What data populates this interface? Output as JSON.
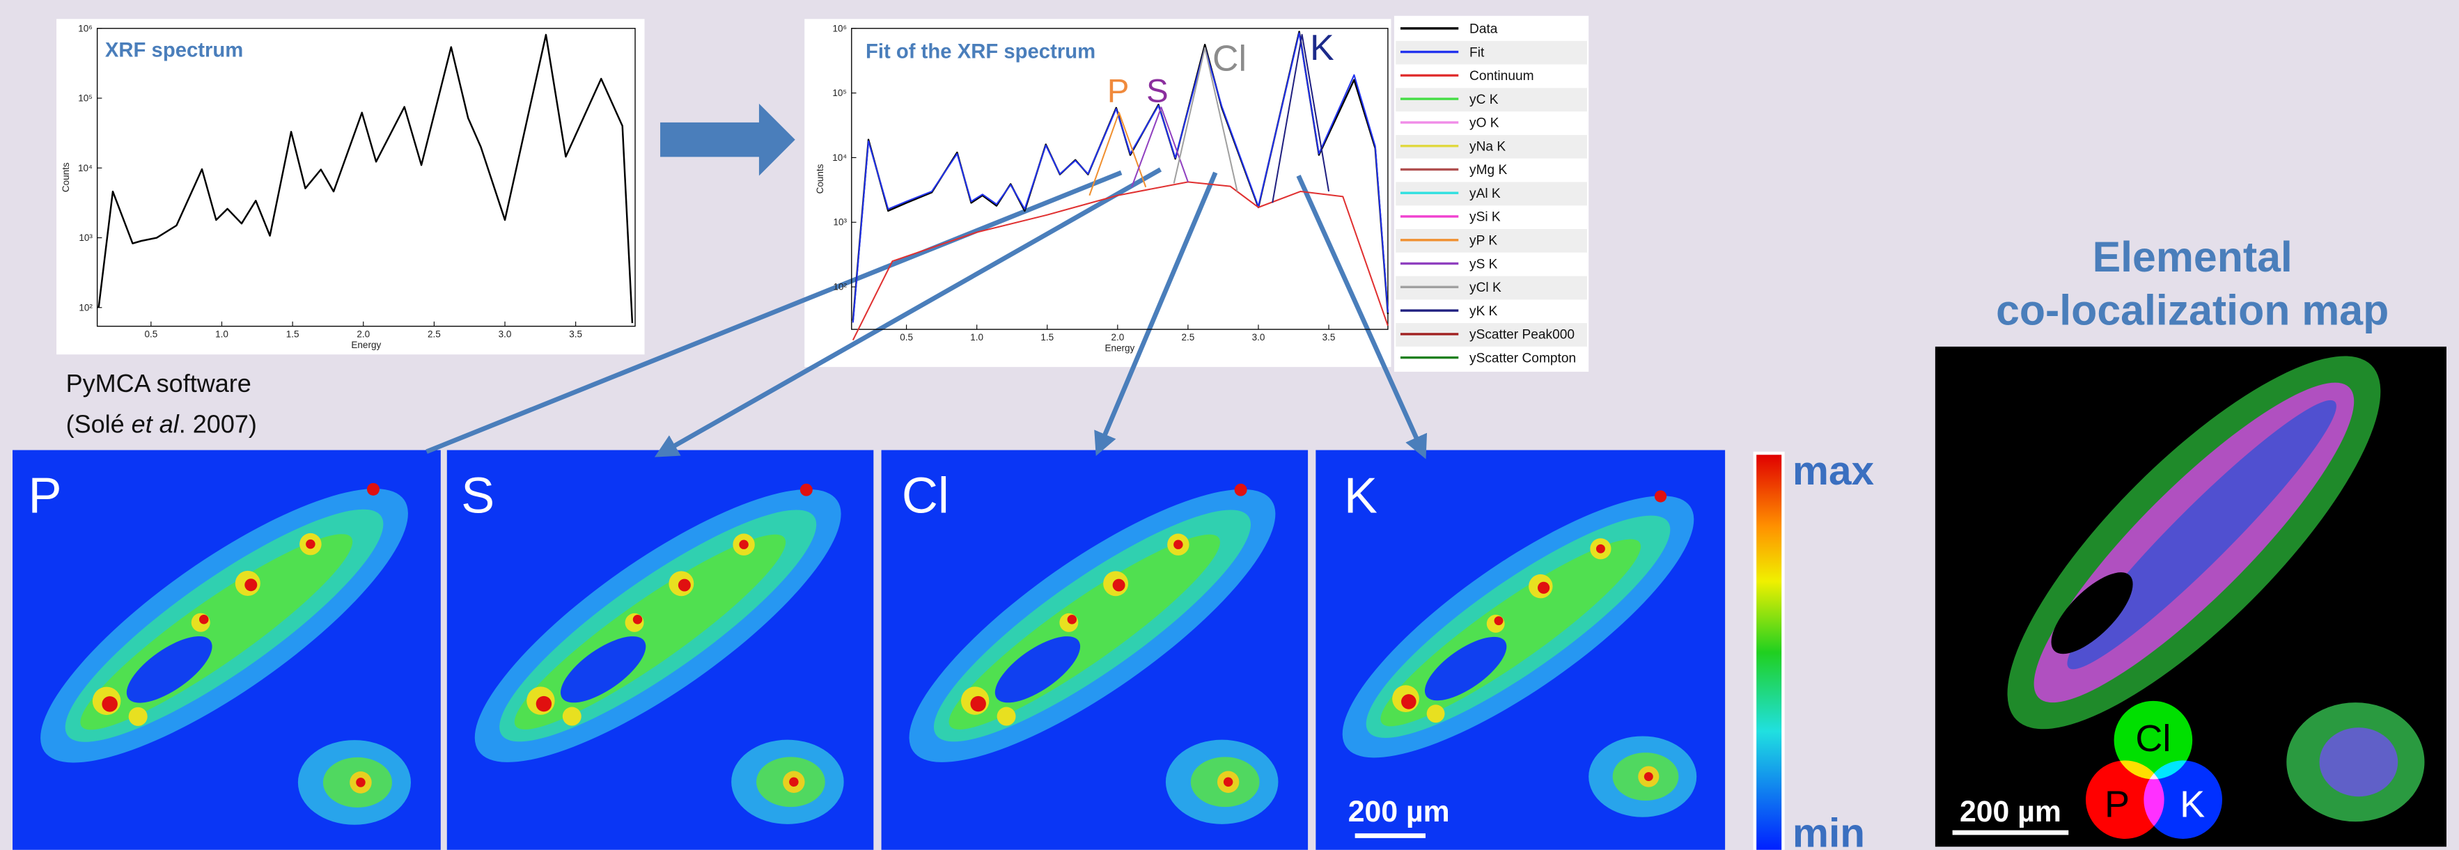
{
  "spectrum": {
    "title": "XRF spectrum",
    "xlabel": "Energy",
    "ylabel": "Counts",
    "log_y": true,
    "xlim": [
      0.12,
      3.92
    ],
    "ylim": [
      54,
      1000000
    ],
    "xticks": [
      0.5,
      {
        "value": 1,
        "label": "1.0"
      },
      1.5,
      {
        "value": 2,
        "label": "2.0"
      },
      2.5,
      {
        "value": 3,
        "label": "3.0"
      },
      3.5
    ],
    "yticks": [
      {
        "value": 100,
        "label": "10²"
      },
      {
        "value": 1000,
        "label": "10³"
      },
      {
        "value": 10000,
        "label": "10⁴"
      },
      {
        "value": 100000,
        "label": "10⁵"
      },
      {
        "value": 1000000,
        "label": "10⁶"
      }
    ],
    "series": [
      {
        "color": "#000000",
        "x": [
          0.13,
          0.23,
          0.37,
          0.43,
          0.54,
          0.68,
          0.86,
          0.96,
          1.04,
          1.14,
          1.24,
          1.34,
          1.49,
          1.59,
          1.7,
          1.79,
          1.99,
          2.09,
          2.29,
          2.41,
          2.62,
          2.74,
          2.83,
          3.0,
          3.29,
          3.43,
          3.68,
          3.83,
          3.9
        ],
        "values": [
          100,
          4600,
          830,
          900,
          1000,
          1500,
          9600,
          1800,
          2600,
          1600,
          3400,
          1070,
          33000,
          5100,
          9500,
          4600,
          62000,
          12300,
          75000,
          11000,
          540000,
          52000,
          20000,
          1800,
          810000,
          14500,
          190000,
          40000,
          60
        ]
      }
    ]
  },
  "fit": {
    "title": "Fit of the XRF spectrum",
    "xlabel": "Energy",
    "ylabel": "Counts",
    "log_y": true,
    "xlim": [
      0.11,
      3.92
    ],
    "ylim": [
      22,
      1000000
    ],
    "xticks": [
      0.5,
      {
        "value": 1,
        "label": "1.0"
      },
      1.5,
      {
        "value": 2,
        "label": "2.0"
      },
      2.5,
      {
        "value": 3,
        "label": "3.0"
      },
      3.5
    ],
    "yticks": [
      {
        "value": 100,
        "label": "10²"
      },
      {
        "value": 1000,
        "label": "10³"
      },
      {
        "value": 10000,
        "label": "10⁴"
      },
      {
        "value": 100000,
        "label": "10⁵"
      },
      {
        "value": 1000000,
        "label": "10⁶"
      }
    ],
    "peak_labels": [
      {
        "text": "P",
        "color": "#f08a3c"
      },
      {
        "text": "S",
        "color": "#8b2e9e"
      },
      {
        "text": "Cl",
        "color": "#8c8c8c"
      },
      {
        "text": "K",
        "color": "#1c2a8a"
      }
    ],
    "series": [
      {
        "name": "Data",
        "color": "#000000",
        "x": [
          0.12,
          0.23,
          0.37,
          0.5,
          0.68,
          0.86,
          0.96,
          1.04,
          1.14,
          1.24,
          1.34,
          1.49,
          1.59,
          1.7,
          1.79,
          1.99,
          2.09,
          2.29,
          2.41,
          2.62,
          2.74,
          3.0,
          3.29,
          3.43,
          3.68,
          3.83,
          3.92
        ],
        "values": [
          30,
          19000,
          1500,
          2000,
          2900,
          12000,
          2000,
          2600,
          1800,
          3900,
          1500,
          16000,
          5500,
          9200,
          5500,
          59000,
          11000,
          66000,
          9600,
          560000,
          59000,
          1700,
          890000,
          11000,
          160000,
          14000,
          38
        ]
      },
      {
        "name": "Fit",
        "color": "#2233ee",
        "x": [
          0.12,
          0.23,
          0.37,
          0.5,
          0.68,
          0.86,
          0.96,
          1.04,
          1.14,
          1.24,
          1.34,
          1.49,
          1.59,
          1.7,
          1.79,
          1.99,
          2.09,
          2.29,
          2.41,
          2.62,
          2.74,
          3.0,
          3.29,
          3.43,
          3.68,
          3.83,
          3.92
        ],
        "values": [
          28,
          18000,
          1600,
          2100,
          3000,
          11500,
          2100,
          2700,
          1900,
          3800,
          1600,
          15500,
          5600,
          9000,
          5600,
          57000,
          11500,
          64000,
          9900,
          500000,
          62000,
          1750,
          850000,
          11500,
          190000,
          15000,
          40
        ]
      },
      {
        "name": "Continuum",
        "color": "#e03030",
        "x": [
          0.12,
          0.4,
          1.0,
          1.5,
          2.0,
          2.5,
          2.8,
          3.0,
          3.3,
          3.6,
          3.92
        ],
        "values": [
          15,
          250,
          700,
          1300,
          2600,
          4200,
          3600,
          1700,
          3000,
          2500,
          25
        ]
      },
      {
        "name": "yC K",
        "color": "#44dd44"
      },
      {
        "name": "yO K",
        "color": "#f08ce8"
      },
      {
        "name": "yNa K",
        "color": "#e0d840"
      },
      {
        "name": "yMg K",
        "color": "#b05050"
      },
      {
        "name": "yAl K",
        "color": "#30e0e0"
      },
      {
        "name": "ySi K",
        "color": "#f040d0"
      },
      {
        "name": "yP K",
        "color": "#f09030",
        "x": [
          1.8,
          2.01,
          2.2
        ],
        "values": [
          2600,
          50000,
          3500
        ]
      },
      {
        "name": "yS K",
        "color": "#9040c0",
        "x": [
          2.1,
          2.31,
          2.5
        ],
        "values": [
          3500,
          60000,
          4200
        ]
      },
      {
        "name": "yCl K",
        "color": "#a0a0a0",
        "x": [
          2.4,
          2.62,
          2.85
        ],
        "values": [
          4000,
          500000,
          3000
        ]
      },
      {
        "name": "yK K",
        "color": "#202080",
        "x": [
          3.1,
          3.31,
          3.5
        ],
        "values": [
          2000,
          800000,
          3000
        ]
      },
      {
        "name": "yScatter Peak000",
        "color": "#a02020"
      },
      {
        "name": "yScatter Compton",
        "color": "#208020"
      }
    ]
  },
  "software": {
    "name": "PyMCA software",
    "citation": [
      "(Solé ",
      "et al",
      ". 2007)"
    ]
  },
  "maps": {
    "panels": [
      {
        "label": "P"
      },
      {
        "label": "S"
      },
      {
        "label": "Cl"
      },
      {
        "label": "K"
      }
    ],
    "scalebar": "200 µm"
  },
  "colorbar": {
    "max": "max",
    "min": "min"
  },
  "coloc": {
    "title": [
      "Elemental",
      "co-localization map"
    ],
    "scalebar": "200 µm",
    "venn": [
      "Cl",
      "P",
      "K"
    ]
  }
}
